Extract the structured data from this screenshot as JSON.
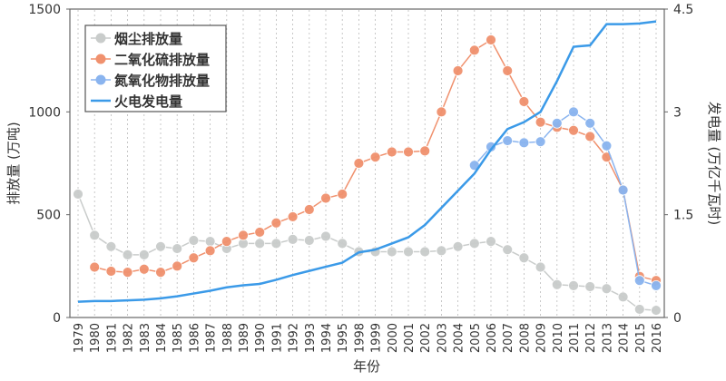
{
  "chart_data": {
    "type": "line",
    "xlabel": "年份",
    "ylabel": "排放量 (万吨)",
    "y2label": "发电量 (万亿千瓦时)",
    "ylim": [
      0,
      1500
    ],
    "y2lim": [
      0,
      4.5
    ],
    "yticks": [
      0,
      500,
      1000,
      1500
    ],
    "y2ticks": [
      "0",
      "1.5",
      "3",
      "4.5"
    ],
    "grid": "vertical dashed",
    "legend_position": "top-left",
    "categories": [
      "1979",
      "1980",
      "1981",
      "1982",
      "1983",
      "1984",
      "1985",
      "1986",
      "1987",
      "1988",
      "1989",
      "1990",
      "1991",
      "1992",
      "1993",
      "1994",
      "1995",
      "1998",
      "1999",
      "2000",
      "2001",
      "2002",
      "2003",
      "2004",
      "2005",
      "2006",
      "2007",
      "2008",
      "2009",
      "2010",
      "2011",
      "2012",
      "2013",
      "2014",
      "2015",
      "2016"
    ],
    "series": [
      {
        "name": "烟尘排放量",
        "axis": "left",
        "style": "line-marker",
        "color": "#c9cccb",
        "values": [
          600,
          400,
          345,
          305,
          305,
          345,
          335,
          375,
          370,
          335,
          360,
          360,
          360,
          380,
          375,
          395,
          360,
          320,
          320,
          320,
          320,
          320,
          325,
          345,
          360,
          370,
          330,
          290,
          245,
          160,
          155,
          150,
          140,
          100,
          40,
          35
        ]
      },
      {
        "name": "二氧化硫排放量",
        "axis": "left",
        "style": "line-marker",
        "color": "#f0916e",
        "values": [
          null,
          245,
          225,
          220,
          235,
          220,
          250,
          290,
          325,
          370,
          400,
          415,
          460,
          490,
          525,
          580,
          600,
          750,
          780,
          805,
          805,
          810,
          1000,
          1200,
          1300,
          1350,
          1200,
          1050,
          950,
          925,
          910,
          880,
          780,
          620,
          200,
          180
        ]
      },
      {
        "name": "氮氧化物排放量",
        "axis": "left",
        "style": "line-marker",
        "color": "#8ab4ef",
        "values": [
          null,
          null,
          null,
          null,
          null,
          null,
          null,
          null,
          null,
          null,
          null,
          null,
          null,
          null,
          null,
          null,
          null,
          null,
          null,
          null,
          null,
          null,
          null,
          null,
          740,
          830,
          860,
          850,
          855,
          945,
          1000,
          945,
          835,
          620,
          180,
          155
        ]
      },
      {
        "name": "火电发电量",
        "axis": "right",
        "style": "line",
        "color": "#3b9ae8",
        "values": [
          0.23,
          0.24,
          0.24,
          0.25,
          0.26,
          0.28,
          0.31,
          0.35,
          0.39,
          0.44,
          0.47,
          0.49,
          0.55,
          0.62,
          0.68,
          0.74,
          0.8,
          0.95,
          0.99,
          1.08,
          1.17,
          1.35,
          1.6,
          1.85,
          2.1,
          2.45,
          2.75,
          2.85,
          3.0,
          3.45,
          3.95,
          3.97,
          4.28,
          4.28,
          4.29,
          4.32
        ]
      }
    ]
  }
}
